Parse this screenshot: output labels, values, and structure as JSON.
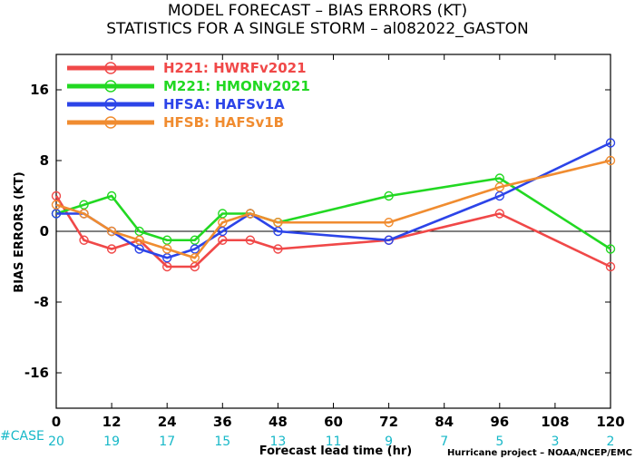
{
  "title_line1": "MODEL FORECAST – BIAS ERRORS (KT)",
  "title_line2": "STATISTICS FOR A SINGLE STORM – al082022_GASTON",
  "credit": "Hurricane project – NOAA/NCEP/EMC",
  "case_label": "#CASE",
  "case_color": "#17b8c8",
  "chart_data": {
    "type": "line",
    "xlabel": "Forecast lead time (hr)",
    "ylabel": "BIAS ERRORS (KT)",
    "xlim": [
      0,
      120
    ],
    "ylim": [
      -20,
      20
    ],
    "xticks": [
      0,
      12,
      24,
      36,
      48,
      60,
      72,
      84,
      96,
      108,
      120
    ],
    "xtick_labels": [
      "0",
      "12",
      "24",
      "36",
      "48",
      "60",
      "72",
      "84",
      "96",
      "108",
      "120"
    ],
    "yticks": [
      -16,
      -8,
      0,
      8,
      16
    ],
    "ytick_labels": [
      "-16",
      "-8",
      "0",
      "8",
      "16"
    ],
    "zero_line": true,
    "grid": false,
    "legend_position": "top-left",
    "case_counts": [
      "20",
      "19",
      "17",
      "15",
      "13",
      "11",
      "9",
      "7",
      "5",
      "3",
      "2"
    ],
    "series": [
      {
        "name": "H221",
        "label": "HWRFv2021",
        "color": "#f04848",
        "x": [
          0,
          6,
          12,
          18,
          24,
          30,
          36,
          42,
          48,
          72,
          96,
          120
        ],
        "y": [
          4,
          -1,
          -2,
          -1,
          -4,
          -4,
          -1,
          -1,
          -2,
          -1,
          2,
          -4
        ]
      },
      {
        "name": "M221",
        "label": "HMONv2021",
        "color": "#22d822",
        "x": [
          0,
          6,
          12,
          18,
          24,
          30,
          36,
          42,
          48,
          72,
          96,
          120
        ],
        "y": [
          2,
          3,
          4,
          0,
          -1,
          -1,
          2,
          2,
          1,
          4,
          6,
          -2
        ]
      },
      {
        "name": "HFSA",
        "label": "HAFSv1A",
        "color": "#2c44e8",
        "x": [
          0,
          6,
          12,
          18,
          24,
          30,
          36,
          42,
          48,
          72,
          96,
          120
        ],
        "y": [
          2,
          2,
          0,
          -2,
          -3,
          -2,
          0,
          2,
          0,
          -1,
          4,
          10
        ]
      },
      {
        "name": "HFSB",
        "label": "HAFSv1B",
        "color": "#f08c30",
        "x": [
          0,
          6,
          12,
          18,
          24,
          30,
          36,
          42,
          48,
          72,
          96,
          120
        ],
        "y": [
          3,
          2,
          0,
          -1,
          -2,
          -3,
          1,
          2,
          1,
          1,
          5,
          8
        ]
      }
    ]
  }
}
